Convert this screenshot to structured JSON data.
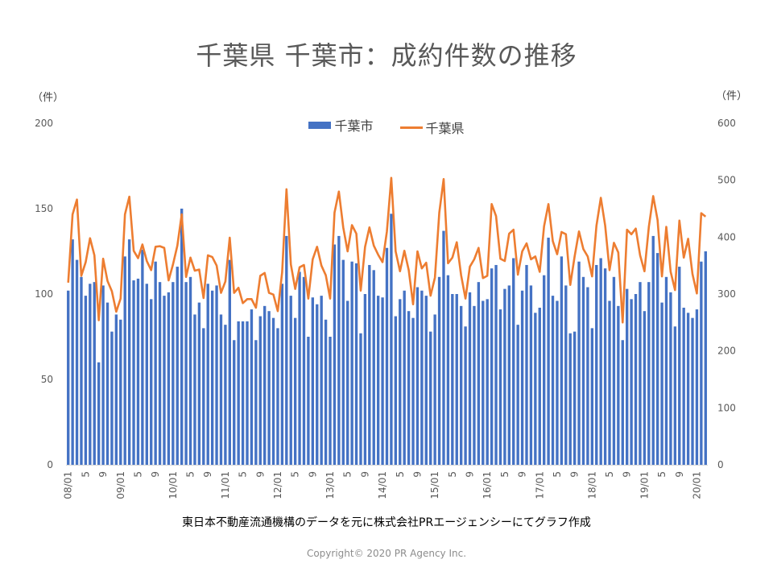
{
  "title": "千葉県 千葉市：成約件数の推移",
  "left_unit": "（件）",
  "right_unit": "（件）",
  "legend": {
    "bar": "千葉市",
    "line": "千葉県"
  },
  "source_note": "東日本不動産流通機構のデータを元に株式会社PRエージェンシーにてグラフ作成",
  "copyright": "Copyright© 2020 PR Agency Inc.",
  "colors": {
    "bar": "#4472c4",
    "line": "#ed7d31",
    "axis": "#d9d9d9",
    "text": "#595959"
  },
  "chart_data": {
    "type": "bar",
    "title": "千葉県 千葉市：成約件数の推移",
    "x_tick_labels": [
      "08/01",
      "5",
      "9",
      "09/01",
      "5",
      "9",
      "10/01",
      "5",
      "9",
      "11/01",
      "5",
      "9",
      "12/01",
      "5",
      "9",
      "13/01",
      "5",
      "9",
      "14/01",
      "5",
      "9",
      "15/01",
      "5",
      "9",
      "16/01",
      "5",
      "9",
      "17/01",
      "5",
      "9",
      "18/01",
      "5",
      "9",
      "19/01",
      "5",
      "9",
      "20/01"
    ],
    "y_left": {
      "range": [
        0,
        200
      ],
      "ticks": [
        0,
        50,
        100,
        150,
        200
      ]
    },
    "y_right": {
      "range": [
        0,
        600
      ],
      "ticks": [
        0,
        100,
        200,
        300,
        400,
        500,
        600
      ]
    },
    "series": [
      {
        "name": "千葉市",
        "type": "bar",
        "axis": "left",
        "values": [
          102,
          132,
          120,
          110,
          99,
          106,
          107,
          60,
          105,
          95,
          78,
          88,
          85,
          122,
          132,
          108,
          109,
          126,
          106,
          97,
          119,
          107,
          99,
          101,
          107,
          116,
          150,
          107,
          110,
          88,
          95,
          80,
          106,
          102,
          105,
          88,
          82,
          120,
          73,
          84,
          84,
          84,
          91,
          73,
          87,
          93,
          90,
          86,
          80,
          106,
          134,
          99,
          86,
          113,
          110,
          75,
          98,
          94,
          99,
          85,
          75,
          129,
          134,
          120,
          96,
          119,
          118,
          77,
          100,
          117,
          114,
          99,
          98,
          127,
          147,
          87,
          97,
          102,
          90,
          86,
          104,
          102,
          99,
          78,
          88,
          110,
          137,
          111,
          100,
          100,
          93,
          81,
          101,
          93,
          107,
          96,
          97,
          115,
          117,
          91,
          103,
          105,
          121,
          82,
          102,
          117,
          105,
          89,
          92,
          111,
          133,
          99,
          96,
          122,
          105,
          77,
          78,
          119,
          110,
          104,
          80,
          117,
          121,
          115,
          96,
          110,
          93,
          73,
          103,
          97,
          100,
          107,
          90,
          107,
          134,
          124,
          95,
          110,
          101,
          81,
          116,
          92,
          89,
          86,
          91,
          119,
          125
        ]
      },
      {
        "name": "千葉県",
        "type": "line",
        "axis": "right",
        "values": [
          320,
          440,
          466,
          332,
          356,
          398,
          368,
          254,
          362,
          323,
          305,
          269,
          292,
          440,
          471,
          376,
          363,
          387,
          358,
          342,
          383,
          384,
          381,
          324,
          352,
          385,
          440,
          330,
          364,
          341,
          343,
          293,
          368,
          365,
          350,
          302,
          322,
          399,
          302,
          311,
          284,
          291,
          291,
          276,
          332,
          337,
          302,
          299,
          270,
          338,
          484,
          352,
          309,
          347,
          351,
          292,
          361,
          383,
          350,
          333,
          292,
          443,
          480,
          417,
          375,
          421,
          406,
          306,
          383,
          417,
          385,
          369,
          356,
          410,
          504,
          375,
          340,
          376,
          342,
          282,
          375,
          345,
          355,
          297,
          329,
          443,
          502,
          354,
          364,
          391,
          333,
          292,
          348,
          361,
          381,
          328,
          332,
          458,
          437,
          362,
          358,
          406,
          413,
          334,
          375,
          389,
          361,
          366,
          339,
          419,
          458,
          393,
          370,
          409,
          405,
          316,
          366,
          410,
          379,
          366,
          331,
          420,
          469,
          420,
          342,
          390,
          373,
          250,
          413,
          405,
          415,
          368,
          340,
          418,
          472,
          430,
          331,
          418,
          339,
          307,
          429,
          364,
          397,
          335,
          301,
          442,
          436
        ]
      }
    ]
  }
}
